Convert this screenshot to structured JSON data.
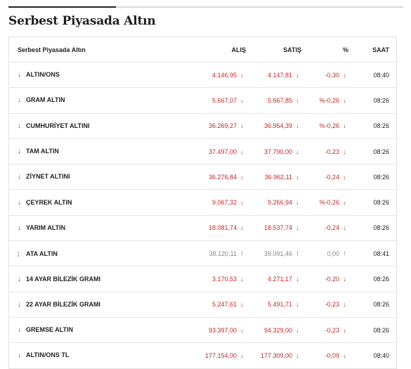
{
  "section": {
    "title": "Serbest Piyasada Altın"
  },
  "table": {
    "headers": {
      "name": "Serbest Piyasada Altın",
      "alis": "ALIŞ",
      "satis": "SATIŞ",
      "pct": "%",
      "saat": "SAAT"
    },
    "colors": {
      "down": "#c0282d",
      "flat": "#888888"
    },
    "rows": [
      {
        "name": "ALTIN/ONS",
        "alis": "4.146,95",
        "satis": "4.147,81",
        "pct": "-0,30",
        "saat": "08:40",
        "dir": "down",
        "icon": "arrow-down-icon"
      },
      {
        "name": "GRAM ALTIN",
        "alis": "5.667,07",
        "satis": "5.667,85",
        "pct": "%-0,26",
        "saat": "08:26",
        "dir": "down",
        "icon": "arrow-down-icon"
      },
      {
        "name": "CUMHURİYET ALTINI",
        "alis": "36.269,27",
        "satis": "36.954,39",
        "pct": "%-0,26",
        "saat": "08:26",
        "dir": "down",
        "icon": "arrow-down-icon"
      },
      {
        "name": "TAM ALTIN",
        "alis": "37.497,00",
        "satis": "37.790,00",
        "pct": "-0,23",
        "saat": "08:26",
        "dir": "down",
        "icon": "arrow-down-icon"
      },
      {
        "name": "ZİYNET ALTINI",
        "alis": "36.276,84",
        "satis": "36.962,11",
        "pct": "-0,24",
        "saat": "08:26",
        "dir": "down",
        "icon": "arrow-down-icon"
      },
      {
        "name": "ÇEYREK ALTIN",
        "alis": "9.067,32",
        "satis": "9.266,94",
        "pct": "%-0,26",
        "saat": "08:26",
        "dir": "down",
        "icon": "arrow-down-icon"
      },
      {
        "name": "YARIM ALTIN",
        "alis": "18.081,74",
        "satis": "18.537,74",
        "pct": "-0,24",
        "saat": "08:26",
        "dir": "down",
        "icon": "arrow-down-icon"
      },
      {
        "name": "ATA ALTIN",
        "alis": "38.120,11",
        "satis": "39.091,46",
        "pct": "0,00",
        "saat": "08:41",
        "dir": "flat",
        "icon": "unchanged-icon"
      },
      {
        "name": "14 AYAR BİLEZİK GRAMI",
        "alis": "3.170,53",
        "satis": "4.271,17",
        "pct": "-0,20",
        "saat": "08:26",
        "dir": "down",
        "icon": "arrow-down-icon"
      },
      {
        "name": "22 AYAR BİLEZİK GRAMI",
        "alis": "5.247,61",
        "satis": "5.491,71",
        "pct": "-0,23",
        "saat": "08:26",
        "dir": "down",
        "icon": "arrow-down-icon"
      },
      {
        "name": "GREMSE ALTIN",
        "alis": "93.397,00",
        "satis": "94.329,00",
        "pct": "-0,23",
        "saat": "08:26",
        "dir": "down",
        "icon": "arrow-down-icon"
      },
      {
        "name": "ALTIN/ONS TL",
        "alis": "177.154,00",
        "satis": "177.309,00",
        "pct": "-0,09",
        "saat": "08:40",
        "dir": "down",
        "icon": "arrow-down-icon"
      }
    ]
  }
}
